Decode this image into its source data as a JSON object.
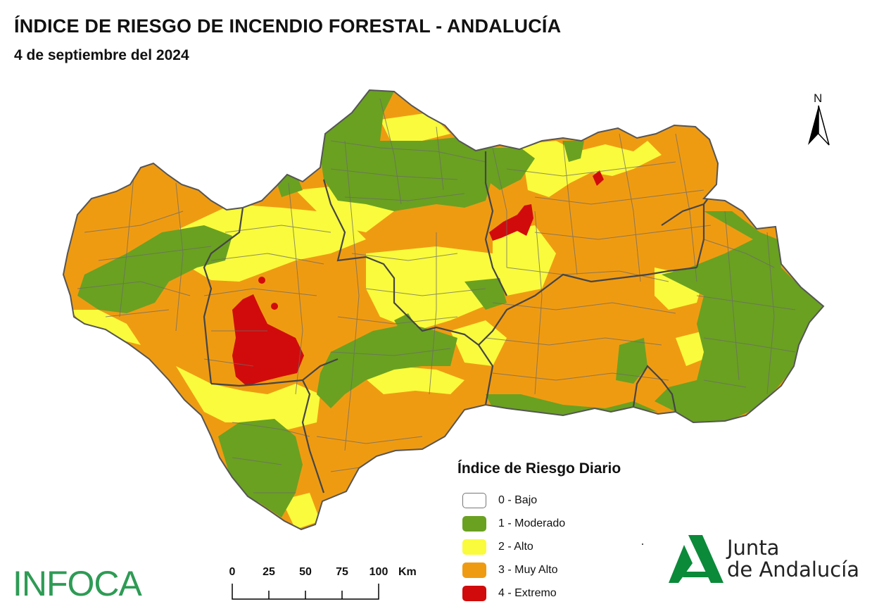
{
  "title": "ÍNDICE DE RIESGO DE INCENDIO FORESTAL - ANDALUCÍA",
  "subtitle": "4 de septiembre del 2024",
  "north_label": "N",
  "legend": {
    "title": "Índice de Riesgo Diario",
    "items": [
      {
        "label": "0 - Bajo",
        "color": "#ffffff"
      },
      {
        "label": "1 - Moderado",
        "color": "#6aa121"
      },
      {
        "label": "2 - Alto",
        "color": "#f9fb3c"
      },
      {
        "label": "3 - Muy Alto",
        "color": "#ef9b12"
      },
      {
        "label": "4 - Extremo",
        "color": "#d10b0b"
      }
    ]
  },
  "scale_bar": {
    "ticks": [
      "0",
      "25",
      "50",
      "75",
      "100"
    ],
    "unit": "Km"
  },
  "logos": {
    "infoca": "INFOCA",
    "junta_line1": "Junta",
    "junta_line2": "de Andalucía"
  },
  "colors": {
    "moderado": "#6aa121",
    "alto": "#f9fb3c",
    "muy_alto": "#ef9b12",
    "extremo": "#d10b0b",
    "borders": "#5a5a5a",
    "brand_green": "#2e9b55"
  }
}
